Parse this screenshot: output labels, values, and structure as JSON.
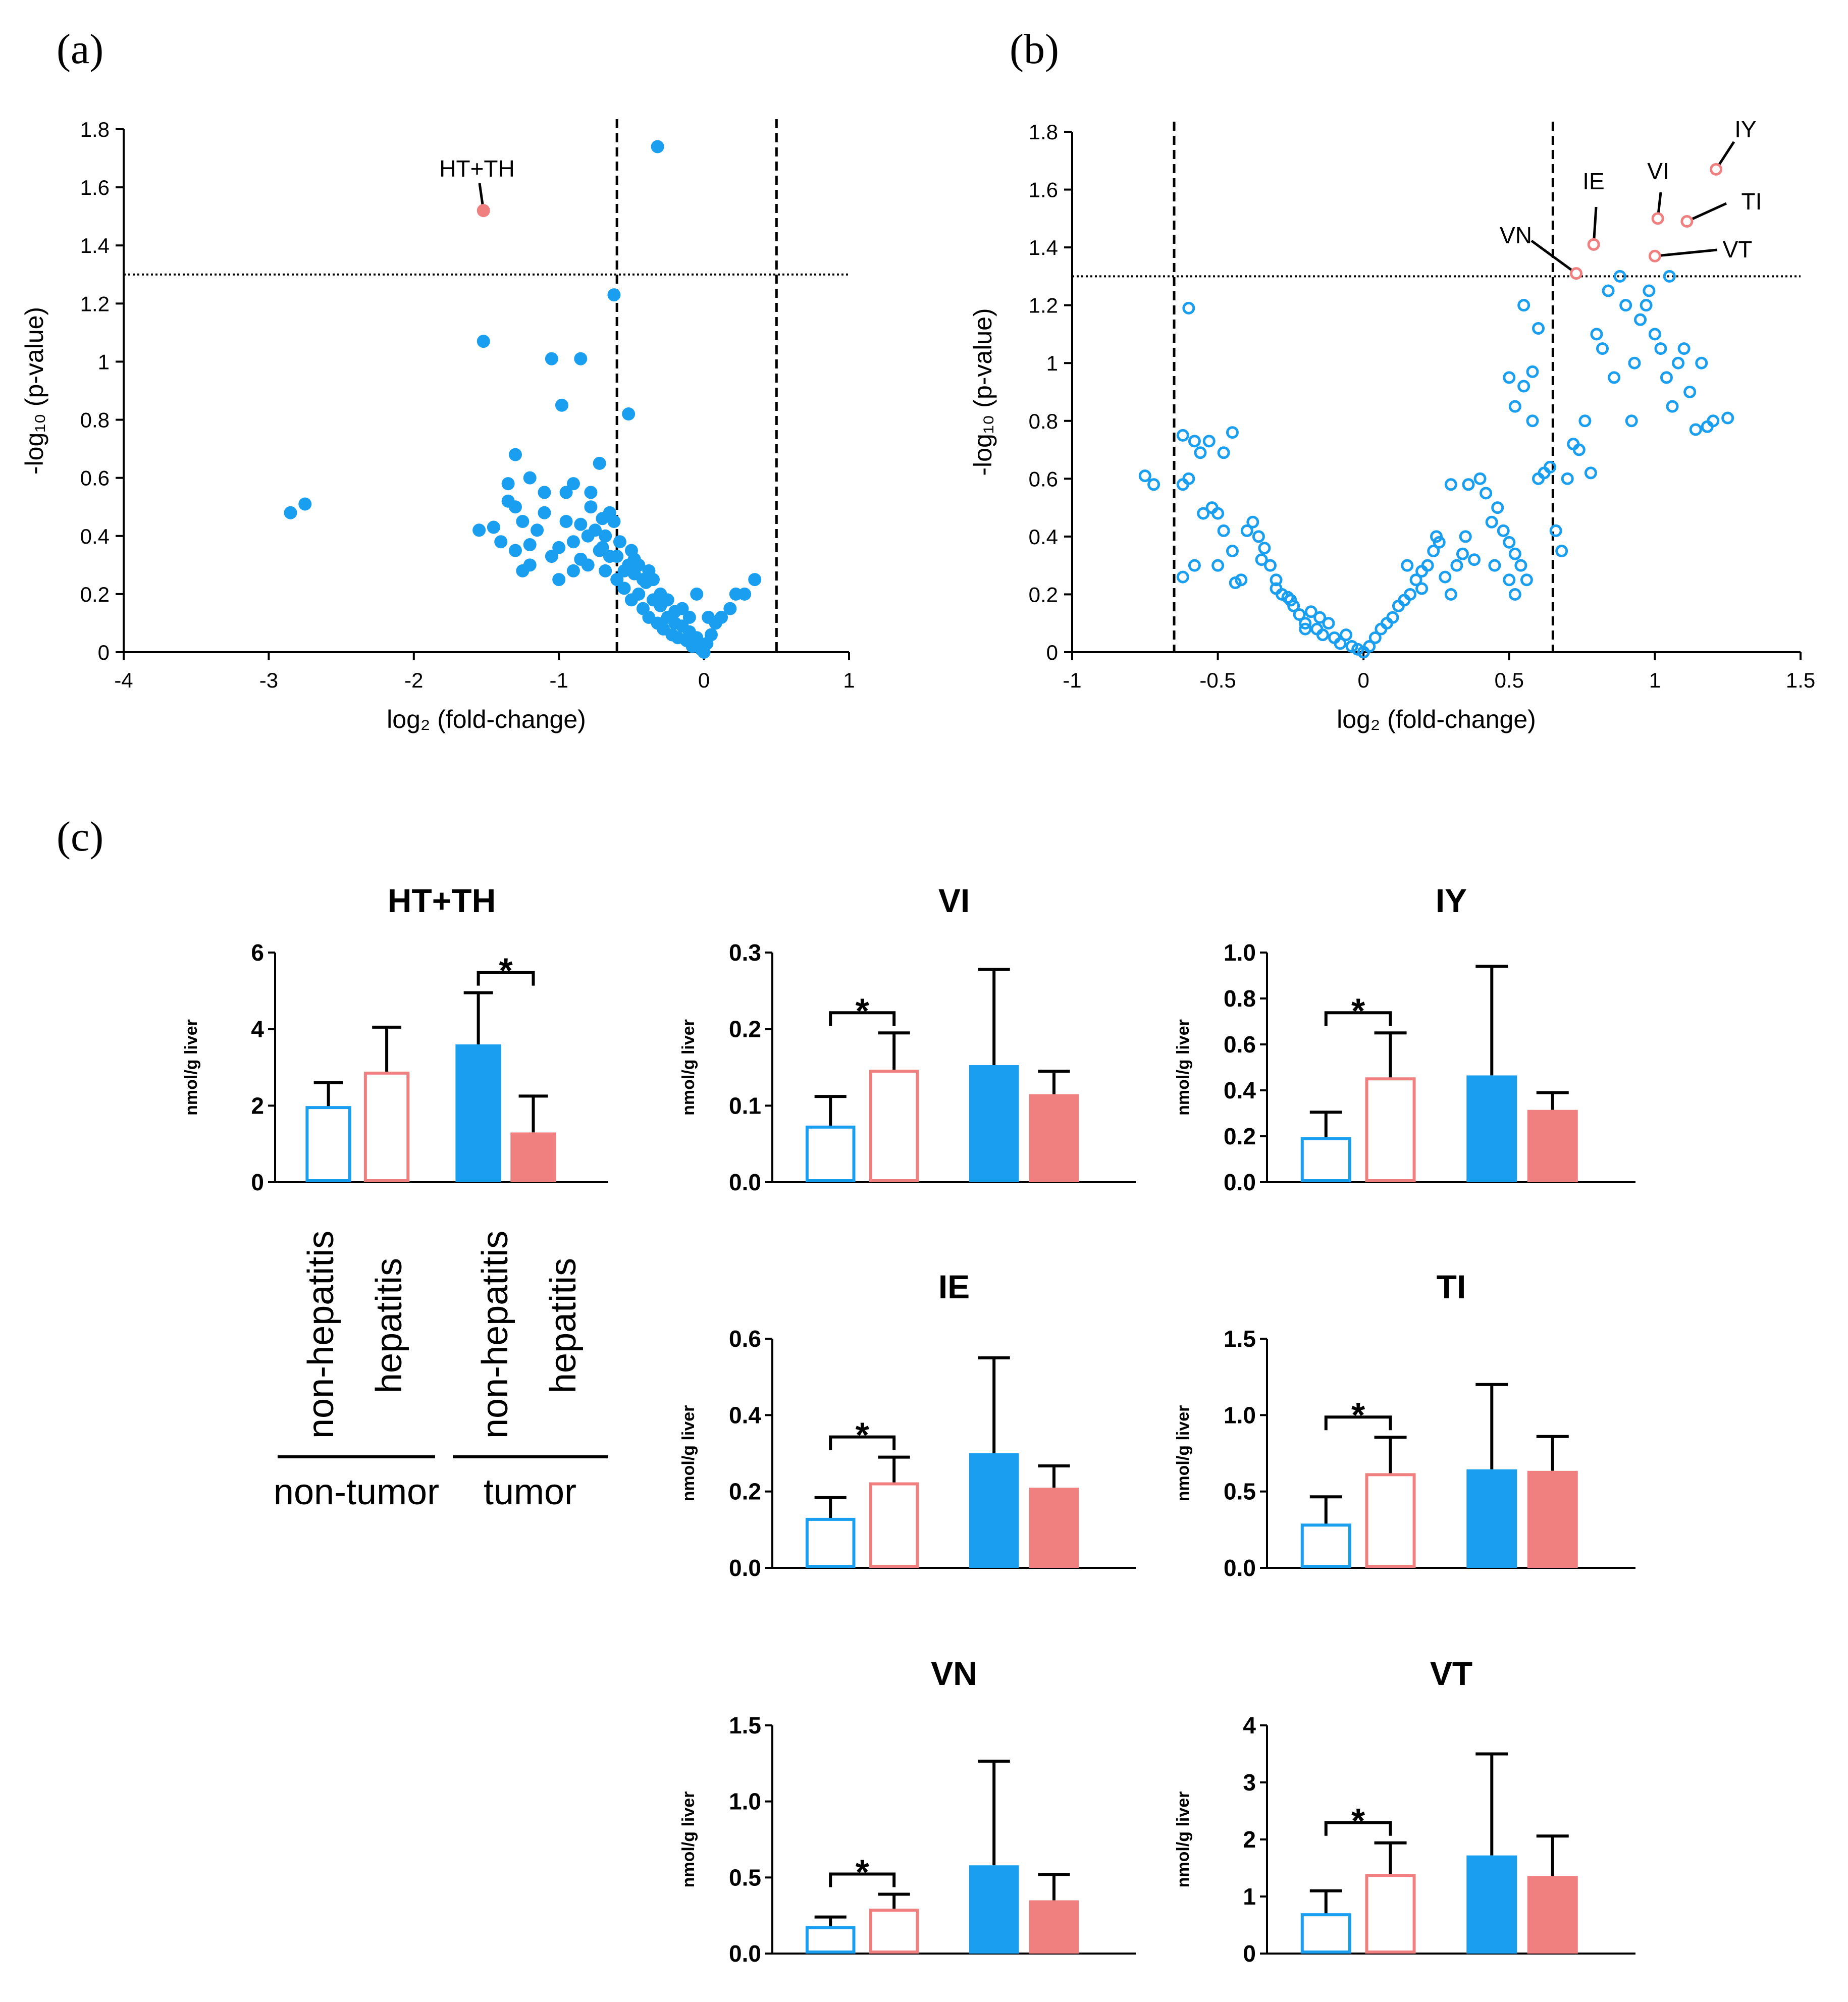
{
  "panels": {
    "a": "(a)",
    "b": "(b)",
    "c": "(c)"
  },
  "colors": {
    "blue": "#1a9ff0",
    "pink": "#f08080",
    "black": "#000000"
  },
  "chart_data": [
    {
      "id": "a",
      "type": "scatter",
      "xlabel": "log₂ (fold-change)",
      "ylabel": "-log₁₀ (p-value)",
      "xlim": [
        -4,
        1
      ],
      "ylim": [
        0,
        1.8
      ],
      "xticks": [
        "-4",
        "-3",
        "-2",
        "-1",
        "0",
        "1"
      ],
      "yticks": [
        "0",
        "0.2",
        "0.4",
        "0.6",
        "0.8",
        "1",
        "1.2",
        "1.4",
        "1.6",
        "1.8"
      ],
      "vlines": [
        -0.6,
        0.5
      ],
      "hline": 1.3,
      "marker": "filled",
      "highlight": {
        "label": "HT+TH",
        "x": -1.52,
        "y": 1.52
      },
      "points": [
        [
          -2.85,
          0.48
        ],
        [
          -2.75,
          0.51
        ],
        [
          -1.52,
          1.07
        ],
        [
          -0.32,
          1.74
        ],
        [
          -0.62,
          1.23
        ],
        [
          -0.85,
          1.01
        ],
        [
          -1.05,
          1.01
        ],
        [
          -0.98,
          0.85
        ],
        [
          -0.52,
          0.82
        ],
        [
          -0.72,
          0.65
        ],
        [
          -1.3,
          0.68
        ],
        [
          -1.35,
          0.58
        ],
        [
          -1.45,
          0.43
        ],
        [
          -1.55,
          0.42
        ],
        [
          -1.4,
          0.38
        ],
        [
          -1.3,
          0.5
        ],
        [
          -1.25,
          0.45
        ],
        [
          -1.2,
          0.37
        ],
        [
          -1.15,
          0.42
        ],
        [
          -1.1,
          0.48
        ],
        [
          -1.05,
          0.33
        ],
        [
          -1.0,
          0.36
        ],
        [
          -0.95,
          0.45
        ],
        [
          -0.9,
          0.38
        ],
        [
          -0.85,
          0.32
        ],
        [
          -0.8,
          0.3
        ],
        [
          -0.78,
          0.5
        ],
        [
          -0.75,
          0.42
        ],
        [
          -0.7,
          0.36
        ],
        [
          -0.68,
          0.28
        ],
        [
          -0.65,
          0.33
        ],
        [
          -0.62,
          0.45
        ],
        [
          -0.6,
          0.25
        ],
        [
          -0.58,
          0.38
        ],
        [
          -0.55,
          0.22
        ],
        [
          -0.52,
          0.3
        ],
        [
          -0.5,
          0.18
        ],
        [
          -0.48,
          0.27
        ],
        [
          -0.45,
          0.2
        ],
        [
          -0.42,
          0.15
        ],
        [
          -0.4,
          0.24
        ],
        [
          -0.38,
          0.12
        ],
        [
          -0.35,
          0.18
        ],
        [
          -0.32,
          0.1
        ],
        [
          -0.3,
          0.16
        ],
        [
          -0.28,
          0.08
        ],
        [
          -0.25,
          0.12
        ],
        [
          -0.22,
          0.06
        ],
        [
          -0.2,
          0.14
        ],
        [
          -0.18,
          0.05
        ],
        [
          -0.15,
          0.09
        ],
        [
          -0.12,
          0.04
        ],
        [
          -0.1,
          0.07
        ],
        [
          -0.08,
          0.02
        ],
        [
          -0.05,
          0.05
        ],
        [
          -0.02,
          0.01
        ],
        [
          0.0,
          0.0
        ],
        [
          0.02,
          0.03
        ],
        [
          0.05,
          0.06
        ],
        [
          0.08,
          0.1
        ],
        [
          0.12,
          0.12
        ],
        [
          0.18,
          0.15
        ],
        [
          0.22,
          0.2
        ],
        [
          0.28,
          0.2
        ],
        [
          0.35,
          0.25
        ],
        [
          -1.25,
          0.28
        ],
        [
          -1.2,
          0.3
        ],
        [
          -1.3,
          0.35
        ],
        [
          -1.0,
          0.25
        ],
        [
          -0.9,
          0.28
        ],
        [
          -0.8,
          0.4
        ],
        [
          -0.72,
          0.35
        ],
        [
          -0.68,
          0.4
        ],
        [
          -0.6,
          0.33
        ],
        [
          -0.55,
          0.28
        ],
        [
          -0.45,
          0.3
        ],
        [
          -0.42,
          0.25
        ],
        [
          -0.35,
          0.25
        ],
        [
          -0.3,
          0.2
        ],
        [
          -0.25,
          0.18
        ],
        [
          -0.2,
          0.1
        ],
        [
          -0.15,
          0.15
        ],
        [
          -0.1,
          0.12
        ],
        [
          -0.9,
          0.58
        ],
        [
          -0.78,
          0.55
        ],
        [
          -1.1,
          0.55
        ],
        [
          -0.95,
          0.55
        ],
        [
          -1.2,
          0.6
        ],
        [
          -1.35,
          0.52
        ],
        [
          -0.85,
          0.44
        ],
        [
          -0.7,
          0.46
        ],
        [
          -0.65,
          0.48
        ],
        [
          -0.5,
          0.35
        ],
        [
          -0.48,
          0.32
        ],
        [
          -0.38,
          0.28
        ],
        [
          -0.05,
          0.2
        ],
        [
          0.03,
          0.12
        ]
      ]
    },
    {
      "id": "b",
      "type": "scatter",
      "xlabel": "log₂ (fold-change)",
      "ylabel": "-log₁₀ (p-value)",
      "xlim": [
        -1,
        1.5
      ],
      "ylim": [
        0,
        1.8
      ],
      "xticks": [
        "-1",
        "-0.5",
        "0",
        "0.5",
        "1",
        "1.5"
      ],
      "yticks": [
        "0",
        "0.2",
        "0.4",
        "0.6",
        "0.8",
        "1",
        "1.2",
        "1.4",
        "1.6",
        "1.8"
      ],
      "vlines": [
        -0.65,
        0.65
      ],
      "hline": 1.3,
      "marker": "open",
      "highlights": [
        {
          "label": "IY",
          "x": 1.21,
          "y": 1.67
        },
        {
          "label": "VI",
          "x": 1.01,
          "y": 1.5
        },
        {
          "label": "TI",
          "x": 1.11,
          "y": 1.49
        },
        {
          "label": "IE",
          "x": 0.79,
          "y": 1.41
        },
        {
          "label": "VT",
          "x": 1.0,
          "y": 1.37
        },
        {
          "label": "VN",
          "x": 0.73,
          "y": 1.31
        }
      ],
      "points": [
        [
          -0.75,
          0.61
        ],
        [
          -0.72,
          0.58
        ],
        [
          -0.6,
          1.19
        ],
        [
          -0.62,
          0.75
        ],
        [
          -0.58,
          0.73
        ],
        [
          -0.56,
          0.69
        ],
        [
          -0.53,
          0.73
        ],
        [
          -0.48,
          0.69
        ],
        [
          -0.45,
          0.76
        ],
        [
          -0.6,
          0.6
        ],
        [
          -0.62,
          0.58
        ],
        [
          -0.55,
          0.48
        ],
        [
          -0.52,
          0.5
        ],
        [
          -0.5,
          0.48
        ],
        [
          -0.58,
          0.3
        ],
        [
          -0.62,
          0.26
        ],
        [
          -0.48,
          0.42
        ],
        [
          -0.45,
          0.35
        ],
        [
          -0.4,
          0.42
        ],
        [
          -0.38,
          0.45
        ],
        [
          -0.36,
          0.4
        ],
        [
          -0.34,
          0.36
        ],
        [
          -0.32,
          0.3
        ],
        [
          -0.3,
          0.25
        ],
        [
          -0.28,
          0.2
        ],
        [
          -0.26,
          0.19
        ],
        [
          -0.24,
          0.16
        ],
        [
          -0.22,
          0.13
        ],
        [
          -0.2,
          0.1
        ],
        [
          -0.18,
          0.14
        ],
        [
          -0.16,
          0.08
        ],
        [
          -0.14,
          0.06
        ],
        [
          -0.12,
          0.1
        ],
        [
          -0.1,
          0.05
        ],
        [
          -0.08,
          0.03
        ],
        [
          -0.06,
          0.06
        ],
        [
          -0.04,
          0.02
        ],
        [
          -0.02,
          0.01
        ],
        [
          0.0,
          0.0
        ],
        [
          0.02,
          0.02
        ],
        [
          0.04,
          0.05
        ],
        [
          0.06,
          0.08
        ],
        [
          0.08,
          0.1
        ],
        [
          0.1,
          0.12
        ],
        [
          0.12,
          0.16
        ],
        [
          0.14,
          0.18
        ],
        [
          0.16,
          0.2
        ],
        [
          0.18,
          0.25
        ],
        [
          0.2,
          0.28
        ],
        [
          0.22,
          0.3
        ],
        [
          0.24,
          0.35
        ],
        [
          0.26,
          0.38
        ],
        [
          0.28,
          0.26
        ],
        [
          0.3,
          0.2
        ],
        [
          0.32,
          0.3
        ],
        [
          0.34,
          0.34
        ],
        [
          0.36,
          0.58
        ],
        [
          0.38,
          0.32
        ],
        [
          0.4,
          0.6
        ],
        [
          0.42,
          0.55
        ],
        [
          0.44,
          0.45
        ],
        [
          0.46,
          0.5
        ],
        [
          0.48,
          0.42
        ],
        [
          0.5,
          0.38
        ],
        [
          0.52,
          0.34
        ],
        [
          0.54,
          0.3
        ],
        [
          0.56,
          0.25
        ],
        [
          0.58,
          0.8
        ],
        [
          0.5,
          0.95
        ],
        [
          0.52,
          0.85
        ],
        [
          0.55,
          0.92
        ],
        [
          0.58,
          0.97
        ],
        [
          0.6,
          1.12
        ],
        [
          0.55,
          1.2
        ],
        [
          0.62,
          0.62
        ],
        [
          0.64,
          0.64
        ],
        [
          0.66,
          0.42
        ],
        [
          0.68,
          0.35
        ],
        [
          0.7,
          0.6
        ],
        [
          0.72,
          0.72
        ],
        [
          0.74,
          0.7
        ],
        [
          0.76,
          0.8
        ],
        [
          0.78,
          0.62
        ],
        [
          0.8,
          1.1
        ],
        [
          0.82,
          1.05
        ],
        [
          0.84,
          1.25
        ],
        [
          0.86,
          0.95
        ],
        [
          0.88,
          1.3
        ],
        [
          0.9,
          1.2
        ],
        [
          0.92,
          0.8
        ],
        [
          0.95,
          1.15
        ],
        [
          0.98,
          1.25
        ],
        [
          1.0,
          1.1
        ],
        [
          1.02,
          1.05
        ],
        [
          1.04,
          0.95
        ],
        [
          1.06,
          0.85
        ],
        [
          1.08,
          1.0
        ],
        [
          1.1,
          1.05
        ],
        [
          1.12,
          0.9
        ],
        [
          1.14,
          0.77
        ],
        [
          1.16,
          1.0
        ],
        [
          1.18,
          0.78
        ],
        [
          1.2,
          0.8
        ],
        [
          1.25,
          0.81
        ],
        [
          -0.35,
          0.32
        ],
        [
          -0.3,
          0.22
        ],
        [
          -0.25,
          0.18
        ],
        [
          -0.2,
          0.08
        ],
        [
          -0.15,
          0.12
        ],
        [
          0.15,
          0.3
        ],
        [
          0.2,
          0.22
        ],
        [
          0.25,
          0.4
        ],
        [
          0.3,
          0.58
        ],
        [
          0.35,
          0.4
        ],
        [
          0.45,
          0.3
        ],
        [
          0.5,
          0.25
        ],
        [
          0.52,
          0.2
        ],
        [
          0.6,
          0.6
        ],
        [
          -0.42,
          0.25
        ],
        [
          -0.44,
          0.24
        ],
        [
          -0.5,
          0.3
        ],
        [
          0.97,
          1.2
        ],
        [
          1.05,
          1.3
        ],
        [
          0.93,
          1.0
        ]
      ]
    },
    {
      "id": "HT+TH",
      "type": "bar",
      "title": "HT+TH",
      "ylabel": "nmol/g liver",
      "ylim": [
        0,
        6
      ],
      "yticks": [
        "0",
        "2",
        "4",
        "6"
      ],
      "categories": [
        "non-hepatitis",
        "hepatitis",
        "non-hepatitis",
        "hepatitis"
      ],
      "groups": [
        "non-tumor",
        "tumor"
      ],
      "values": [
        1.95,
        2.85,
        3.6,
        1.3
      ],
      "errors": [
        0.65,
        1.2,
        1.35,
        0.95
      ],
      "sig": {
        "between": [
          2,
          3
        ],
        "label": "*"
      }
    },
    {
      "id": "VI",
      "type": "bar",
      "title": "VI",
      "ylabel": "nmol/g liver",
      "ylim": [
        0,
        0.3
      ],
      "yticks": [
        "0.0",
        "0.1",
        "0.2",
        "0.3"
      ],
      "values": [
        0.072,
        0.145,
        0.153,
        0.115
      ],
      "errors": [
        0.04,
        0.05,
        0.125,
        0.03
      ],
      "sig": {
        "between": [
          0,
          1
        ],
        "label": "*"
      }
    },
    {
      "id": "IY",
      "type": "bar",
      "title": "IY",
      "ylabel": "nmol/g liver",
      "ylim": [
        0,
        1.0
      ],
      "yticks": [
        "0.0",
        "0.2",
        "0.4",
        "0.6",
        "0.8",
        "1.0"
      ],
      "values": [
        0.19,
        0.45,
        0.465,
        0.315
      ],
      "errors": [
        0.115,
        0.2,
        0.475,
        0.075
      ],
      "sig": {
        "between": [
          0,
          1
        ],
        "label": "*"
      }
    },
    {
      "id": "IE",
      "type": "bar",
      "title": "IE",
      "ylabel": "nmol/g liver",
      "ylim": [
        0,
        0.6
      ],
      "yticks": [
        "0.0",
        "0.2",
        "0.4",
        "0.6"
      ],
      "values": [
        0.127,
        0.22,
        0.3,
        0.21
      ],
      "errors": [
        0.057,
        0.07,
        0.25,
        0.057
      ],
      "sig": {
        "between": [
          0,
          1
        ],
        "label": "*"
      }
    },
    {
      "id": "TI",
      "type": "bar",
      "title": "TI",
      "ylabel": "nmol/g liver",
      "ylim": [
        0,
        1.5
      ],
      "yticks": [
        "0.0",
        "0.5",
        "1.0",
        "1.5"
      ],
      "values": [
        0.28,
        0.61,
        0.645,
        0.635
      ],
      "errors": [
        0.185,
        0.245,
        0.555,
        0.225
      ],
      "sig": {
        "between": [
          0,
          1
        ],
        "label": "*"
      }
    },
    {
      "id": "VN",
      "type": "bar",
      "title": "VN",
      "ylabel": "nmol/g liver",
      "ylim": [
        0,
        1.5
      ],
      "yticks": [
        "0.0",
        "0.5",
        "1.0",
        "1.5"
      ],
      "values": [
        0.17,
        0.285,
        0.58,
        0.35
      ],
      "errors": [
        0.07,
        0.105,
        0.685,
        0.17
      ],
      "sig": {
        "between": [
          0,
          1
        ],
        "label": "*"
      }
    },
    {
      "id": "VT",
      "type": "bar",
      "title": "VT",
      "ylabel": "nmol/g liver",
      "ylim": [
        0,
        4
      ],
      "yticks": [
        "0",
        "1",
        "2",
        "3",
        "4"
      ],
      "values": [
        0.68,
        1.37,
        1.72,
        1.36
      ],
      "errors": [
        0.42,
        0.57,
        1.78,
        0.7
      ],
      "sig": {
        "between": [
          0,
          1
        ],
        "label": "*"
      }
    }
  ],
  "legend_labels": {
    "bar1": "non-hepatitis",
    "bar2": "hepatitis",
    "bar3": "non-hepatitis",
    "bar4": "hepatitis",
    "group1": "non-tumor",
    "group2": "tumor"
  }
}
